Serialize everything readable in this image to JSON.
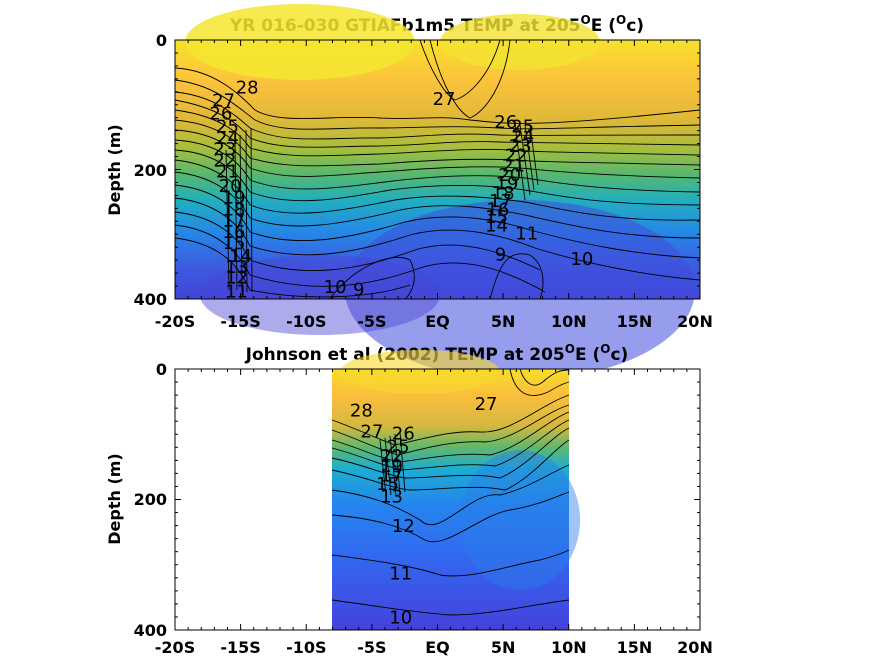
{
  "chart_data": [
    {
      "type": "heatmap",
      "subtype": "filled-contour",
      "title": "YR 016-030 GTIAFb1m5 TEMP at 205",
      "title_sup": "O",
      "title_mid": "E (",
      "title_unit_sup": "O",
      "title_end": "c)",
      "xlabel": "",
      "ylabel": "Depth (m)",
      "x_ticks": [
        "-20S",
        "-15S",
        "-10S",
        "-5S",
        "EQ",
        "5N",
        "10N",
        "15N",
        "20N"
      ],
      "y_ticks": [
        "0",
        "200",
        "400"
      ],
      "xlim": [
        -20,
        20
      ],
      "ylim": [
        0,
        400
      ],
      "y_reversed": true,
      "data_extent": [
        -20,
        20
      ],
      "colormap": "parula",
      "colors": {
        "warm": "#f8e020",
        "mid": "#22b8a0",
        "cold": "#3a46d8"
      },
      "contour_labels": [
        {
          "x": -14.5,
          "y": 75,
          "text": "28"
        },
        {
          "x": -16.3,
          "y": 95,
          "text": "27"
        },
        {
          "x": -16.5,
          "y": 115,
          "text": "26"
        },
        {
          "x": -16.0,
          "y": 135,
          "text": "25"
        },
        {
          "x": -16.0,
          "y": 153,
          "text": "24"
        },
        {
          "x": -16.2,
          "y": 170,
          "text": "23"
        },
        {
          "x": -16.2,
          "y": 188,
          "text": "22"
        },
        {
          "x": -16.0,
          "y": 205,
          "text": "21"
        },
        {
          "x": -15.8,
          "y": 227,
          "text": "20"
        },
        {
          "x": -15.5,
          "y": 245,
          "text": "19"
        },
        {
          "x": -15.5,
          "y": 263,
          "text": "18"
        },
        {
          "x": -15.5,
          "y": 280,
          "text": "17"
        },
        {
          "x": -15.5,
          "y": 298,
          "text": "16"
        },
        {
          "x": -15.5,
          "y": 315,
          "text": "15"
        },
        {
          "x": -15.0,
          "y": 335,
          "text": "14"
        },
        {
          "x": -15.3,
          "y": 352,
          "text": "13"
        },
        {
          "x": -15.3,
          "y": 368,
          "text": "12"
        },
        {
          "x": -15.3,
          "y": 390,
          "text": "11"
        },
        {
          "x": 0.5,
          "y": 93,
          "text": "27"
        },
        {
          "x": 5.2,
          "y": 128,
          "text": "26"
        },
        {
          "x": 6.5,
          "y": 135,
          "text": "25"
        },
        {
          "x": 6.5,
          "y": 150,
          "text": "24"
        },
        {
          "x": 6.3,
          "y": 165,
          "text": "23"
        },
        {
          "x": 6.0,
          "y": 180,
          "text": "22"
        },
        {
          "x": 5.8,
          "y": 195,
          "text": "21"
        },
        {
          "x": 5.5,
          "y": 210,
          "text": "20"
        },
        {
          "x": 5.3,
          "y": 223,
          "text": "19"
        },
        {
          "x": 5.0,
          "y": 238,
          "text": "18"
        },
        {
          "x": 4.8,
          "y": 250,
          "text": "17"
        },
        {
          "x": 4.6,
          "y": 263,
          "text": "16"
        },
        {
          "x": 4.5,
          "y": 275,
          "text": "15"
        },
        {
          "x": 4.5,
          "y": 288,
          "text": "14"
        },
        {
          "x": 6.8,
          "y": 300,
          "text": "11"
        },
        {
          "x": 4.8,
          "y": 333,
          "text": "9"
        },
        {
          "x": 11.0,
          "y": 340,
          "text": "10"
        },
        {
          "x": -7.8,
          "y": 383,
          "text": "10"
        },
        {
          "x": -6.0,
          "y": 387,
          "text": "9"
        }
      ]
    },
    {
      "type": "heatmap",
      "subtype": "filled-contour",
      "title": "Johnson et al (2002) TEMP at 205",
      "title_sup": "O",
      "title_mid": "E (",
      "title_unit_sup": "O",
      "title_end": "c)",
      "xlabel": "",
      "ylabel": "Depth (m)",
      "x_ticks": [
        "-20S",
        "-15S",
        "-10S",
        "-5S",
        "EQ",
        "5N",
        "10N",
        "15N",
        "20N"
      ],
      "y_ticks": [
        "0",
        "200",
        "400"
      ],
      "xlim": [
        -20,
        20
      ],
      "ylim": [
        0,
        400
      ],
      "y_reversed": true,
      "data_extent": [
        -8,
        10
      ],
      "colormap": "parula",
      "colors": {
        "warm": "#f8e020",
        "mid": "#22b8a0",
        "cold": "#3a46d8"
      },
      "contour_labels": [
        {
          "x": -5.8,
          "y": 65,
          "text": "28"
        },
        {
          "x": -5.0,
          "y": 97,
          "text": "27"
        },
        {
          "x": -2.6,
          "y": 100,
          "text": "26"
        },
        {
          "x": -3.0,
          "y": 120,
          "text": "25"
        },
        {
          "x": -3.5,
          "y": 135,
          "text": "22"
        },
        {
          "x": -3.5,
          "y": 150,
          "text": "19"
        },
        {
          "x": -3.5,
          "y": 165,
          "text": "17"
        },
        {
          "x": -3.8,
          "y": 178,
          "text": "15"
        },
        {
          "x": -3.5,
          "y": 197,
          "text": "13"
        },
        {
          "x": -2.6,
          "y": 242,
          "text": "12"
        },
        {
          "x": -2.8,
          "y": 315,
          "text": "11"
        },
        {
          "x": -2.8,
          "y": 382,
          "text": "10"
        },
        {
          "x": 3.7,
          "y": 55,
          "text": "27"
        }
      ]
    }
  ]
}
